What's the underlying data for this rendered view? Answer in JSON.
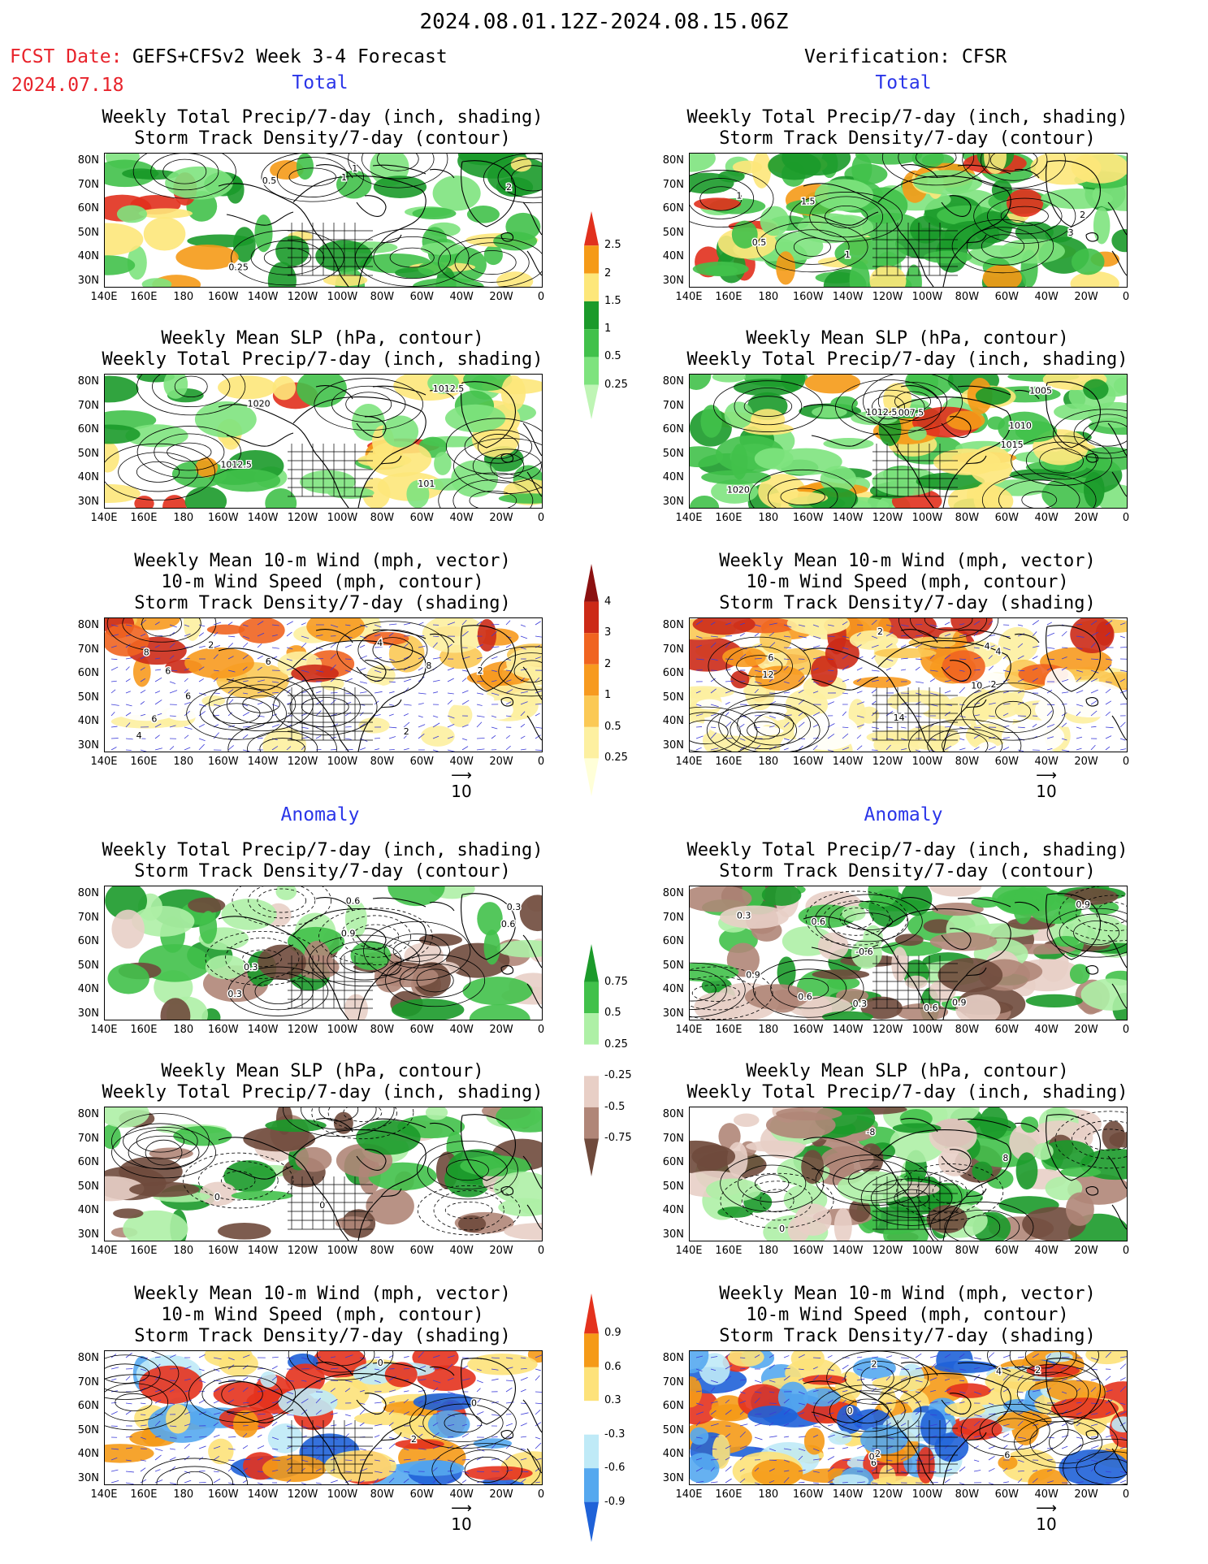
{
  "header": {
    "date_range": "2024.08.01.12Z-2024.08.15.06Z",
    "fcst_label": "FCST Date:",
    "fcst_date": "2024.07.18",
    "model": "GEFS+CFSv2 Week 3-4 Forecast",
    "verification": "Verification: CFSR"
  },
  "sections": {
    "total": "Total",
    "anomaly": "Anomaly"
  },
  "titles": {
    "precip_storm": [
      "Weekly Total Precip/7-day (inch, shading)",
      "Storm Track Density/7-day (contour)"
    ],
    "slp_precip": [
      "Weekly Mean SLP (hPa, contour)",
      "Weekly Total Precip/7-day (inch, shading)"
    ],
    "wind": [
      "Weekly Mean 10-m Wind (mph, vector)",
      "10-m Wind Speed (mph, contour)",
      "Storm Track Density/7-day (shading)"
    ]
  },
  "axes": {
    "lat": [
      "80N",
      "70N",
      "60N",
      "50N",
      "40N",
      "30N"
    ],
    "lon": [
      "140E",
      "160E",
      "180",
      "160W",
      "140W",
      "120W",
      "100W",
      "80W",
      "60W",
      "40W",
      "20W",
      "0"
    ]
  },
  "vector_ref": "10",
  "colorbars": {
    "precip_total": {
      "labels": [
        "2.5",
        "2",
        "1.5",
        "1",
        "0.5",
        "0.25"
      ],
      "colors": [
        "#e1301d",
        "#f59a17",
        "#fde77a",
        "#1b9a2a",
        "#41c14a",
        "#7ee37e",
        "#bff5b5"
      ]
    },
    "storm_total": {
      "labels": [
        "4",
        "3",
        "2",
        "1",
        "0.5",
        "0.25"
      ],
      "colors": [
        "#8b1010",
        "#cc2a17",
        "#f06420",
        "#f79a1f",
        "#fbc955",
        "#fdf0a0",
        "#ffffd8"
      ]
    },
    "precip_anom": {
      "labels": [
        "0.75",
        "0.5",
        "0.25",
        "-0.25",
        "-0.5",
        "-0.75"
      ],
      "colors": [
        "#1b9a2a",
        "#41c14a",
        "#aef0a6",
        "#ffffff",
        "#e8cfc6",
        "#b08678",
        "#6f4a3c"
      ]
    },
    "storm_anom": {
      "labels": [
        "0.9",
        "0.6",
        "0.3",
        "-0.3",
        "-0.6",
        "-0.9"
      ],
      "colors": [
        "#e4321d",
        "#f59a17",
        "#fde27a",
        "#ffffff",
        "#bfeaf7",
        "#55a8ef",
        "#1f62d8"
      ]
    }
  },
  "contour_labels": {
    "r1l": [
      "1",
      "1",
      "2",
      "0.5",
      "0.25"
    ],
    "r1r": [
      "1.5",
      "0.5",
      "1",
      "1",
      "3",
      "2"
    ],
    "r2l": [
      "1012.5",
      "1012.5",
      "1020",
      "101"
    ],
    "r2r": [
      "1007.5",
      "1010",
      "1012.5",
      "1015",
      "1005",
      "1020"
    ],
    "r3l": [
      "4",
      "2",
      "4",
      "6",
      "6",
      "2",
      "2",
      "8",
      "6",
      "8",
      "6"
    ],
    "r3r": [
      "4",
      "2",
      "4",
      "6",
      "2",
      "12",
      "14",
      "10"
    ],
    "r4l": [
      "0.3",
      "0.6",
      "0.3",
      "0.9",
      "0.6",
      "0.3"
    ],
    "r4r": [
      "0.9",
      "0.9",
      "0.3",
      "0.6",
      "0.9",
      "0.6",
      "0.6",
      "0.3",
      "-0.6"
    ],
    "r5l": [
      "0",
      "0"
    ],
    "r5r": [
      "0",
      "8",
      "-8"
    ],
    "r6l": [
      "2",
      "0",
      "0"
    ],
    "r6r": [
      "6",
      "2",
      "4",
      "0",
      "2",
      "0",
      "2",
      "6"
    ]
  }
}
